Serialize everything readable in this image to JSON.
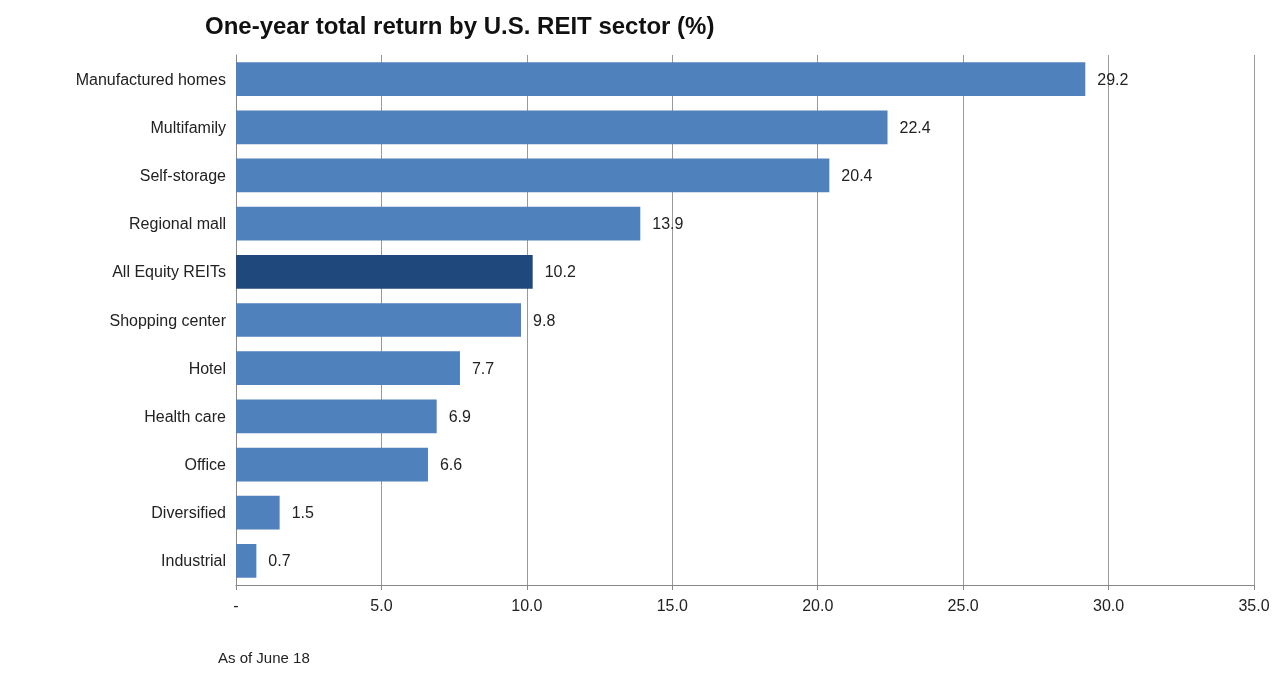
{
  "chart_data": {
    "type": "bar",
    "orientation": "horizontal",
    "title": "One-year total return by U.S. REIT sector (%)",
    "categories": [
      "Manufactured homes",
      "Multifamily",
      "Self-storage",
      "Regional mall",
      "All Equity REITs",
      "Shopping center",
      "Hotel",
      "Health care",
      "Office",
      "Diversified",
      "Industrial"
    ],
    "values": [
      29.2,
      22.4,
      20.4,
      13.9,
      10.2,
      9.8,
      7.7,
      6.9,
      6.6,
      1.5,
      0.7
    ],
    "colors": [
      "#4f81bd",
      "#4f81bd",
      "#4f81bd",
      "#4f81bd",
      "#1f497d",
      "#4f81bd",
      "#4f81bd",
      "#4f81bd",
      "#4f81bd",
      "#4f81bd",
      "#4f81bd"
    ],
    "xlim": [
      0,
      35
    ],
    "xticks": [
      {
        "value": 0,
        "label": "-"
      },
      {
        "value": 5,
        "label": "5.0"
      },
      {
        "value": 10,
        "label": "10.0"
      },
      {
        "value": 15,
        "label": "15.0"
      },
      {
        "value": 20,
        "label": "20.0"
      },
      {
        "value": 25,
        "label": "25.0"
      },
      {
        "value": 30,
        "label": "30.0"
      },
      {
        "value": 35,
        "label": "35.0"
      }
    ],
    "grid": "x",
    "data_labels": true,
    "annotations": [
      "As of June 18"
    ]
  }
}
